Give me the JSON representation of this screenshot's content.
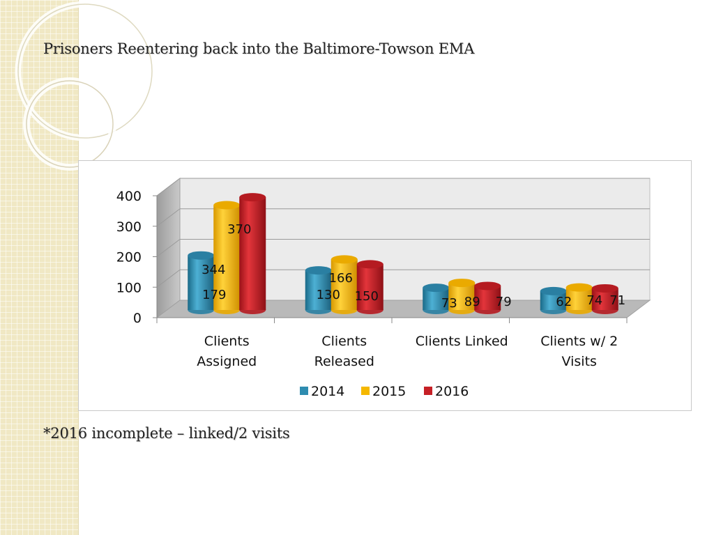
{
  "slide": {
    "title": "Prisoners Reentering back into the Baltimore-Towson EMA",
    "footnote": "*2016 incomplete – linked/2 visits"
  },
  "chart_data": {
    "type": "bar",
    "style": "3d-cylinder",
    "title": "",
    "xlabel": "",
    "ylabel": "",
    "ylim": [
      0,
      400
    ],
    "yticks": [
      "0",
      "100",
      "200",
      "300",
      "400"
    ],
    "categories": [
      [
        "Clients",
        "Assigned"
      ],
      [
        "Clients",
        "Released"
      ],
      [
        "Clients Linked"
      ],
      [
        "Clients w/ 2",
        "Visits"
      ]
    ],
    "series": [
      {
        "name": "2014",
        "values": [
          179,
          130,
          73,
          62
        ],
        "labels": [
          "179",
          "130",
          "73",
          "62"
        ],
        "color": "#2e8cb0"
      },
      {
        "name": "2015",
        "values": [
          344,
          166,
          89,
          74
        ],
        "labels": [
          "344",
          "166",
          "89",
          "74"
        ],
        "color": "#f5b800"
      },
      {
        "name": "2016",
        "values": [
          370,
          150,
          79,
          71
        ],
        "labels": [
          "370",
          "150",
          "79",
          "71"
        ],
        "color": "#c62026"
      }
    ],
    "legend": "bottom",
    "grid": true
  }
}
